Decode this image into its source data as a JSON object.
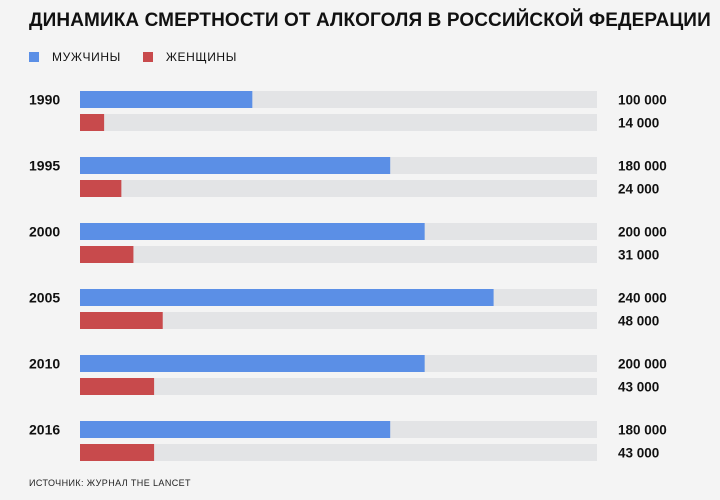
{
  "title": "ДИНАМИКА СМЕРТНОСТИ ОТ АЛКОГОЛЯ В РОССИЙСКОЙ ФЕДЕРАЦИИ",
  "source": "ИСТОЧНИК: ЖУРНАЛ THE LANCET",
  "colors": {
    "men": "#5b8fe6",
    "women": "#c84a4c",
    "track": "#e3e4e6"
  },
  "chart_data": {
    "type": "bar",
    "orientation": "horizontal",
    "categories": [
      "1990",
      "1995",
      "2000",
      "2005",
      "2010",
      "2016"
    ],
    "series": [
      {
        "name": "МУЖЧИНЫ",
        "values": [
          100000,
          180000,
          200000,
          240000,
          200000,
          180000
        ],
        "labels": [
          "100 000",
          "180 000",
          "200 000",
          "240 000",
          "200 000",
          "180 000"
        ]
      },
      {
        "name": "ЖЕНЩИНЫ",
        "values": [
          14000,
          24000,
          31000,
          48000,
          43000,
          43000
        ],
        "labels": [
          "14 000",
          "24 000",
          "31 000",
          "48 000",
          "43 000",
          "43 000"
        ]
      }
    ],
    "xlim": [
      0,
      300000
    ],
    "legend": "top-left",
    "grid": false
  }
}
